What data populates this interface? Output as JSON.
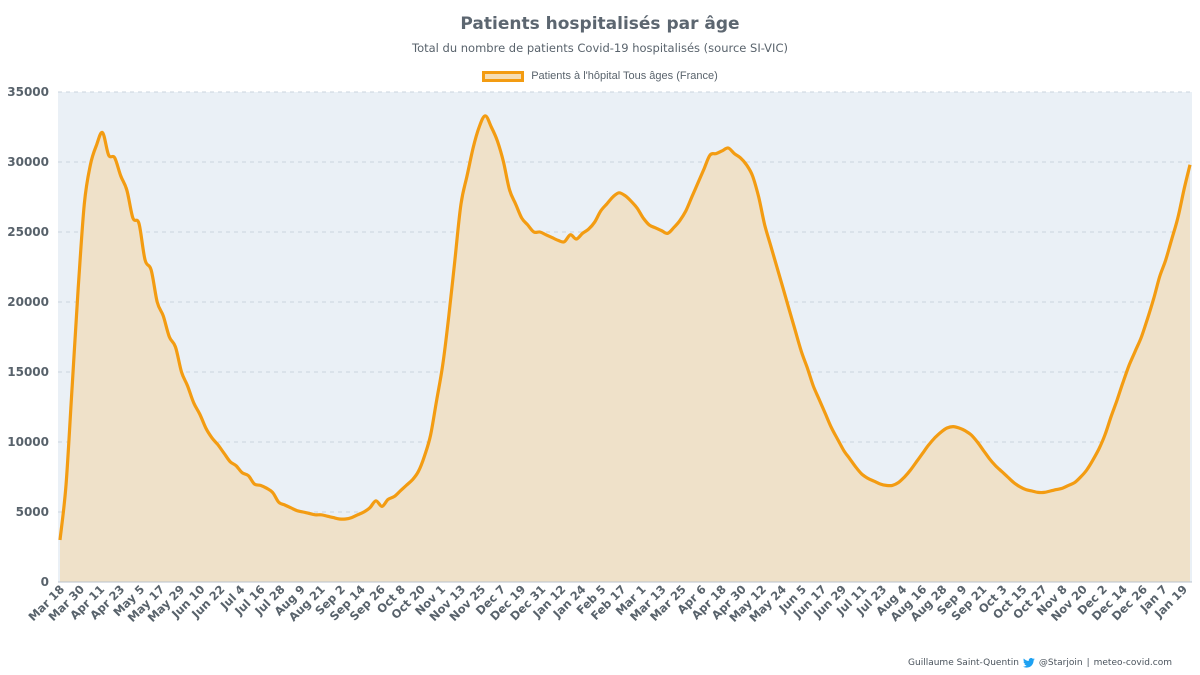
{
  "header": {
    "title": "Patients hospitalisés par âge",
    "subtitle": "Total du nombre de patients Covid-19 hospitalisés (source SI-VIC)"
  },
  "footer": {
    "author": "Guillaume Saint-Quentin",
    "handle": "@Starjoin",
    "separator": "|",
    "site": "meteo-covid.com"
  },
  "colors": {
    "line": "#f39c12",
    "fill": "#efe1c9",
    "plot_bg": "#eaf0f6",
    "grid": "#c9d3dd"
  },
  "chart_data": {
    "type": "area",
    "title": "Patients hospitalisés par âge",
    "subtitle": "Total du nombre de patients Covid-19 hospitalisés (source SI-VIC)",
    "xlabel": "",
    "ylabel": "",
    "ylim": [
      0,
      35000
    ],
    "yticks": [
      "0",
      "5000",
      "10000",
      "15000",
      "20000",
      "25000",
      "30000",
      "35000"
    ],
    "grid": true,
    "legend_position": "top",
    "x_tick_labels": [
      "Mar 18",
      "Mar 30",
      "Apr 11",
      "Apr 23",
      "May 5",
      "May 17",
      "May 29",
      "Jun 10",
      "Jun 22",
      "Jul 4",
      "Jul 16",
      "Jul 28",
      "Aug 9",
      "Aug 21",
      "Sep 2",
      "Sep 14",
      "Sep 26",
      "Oct 8",
      "Oct 20",
      "Nov 1",
      "Nov 13",
      "Nov 25",
      "Dec 7",
      "Dec 19",
      "Dec 31",
      "Jan 12",
      "Jan 24",
      "Feb 5",
      "Feb 17",
      "Mar 1",
      "Mar 13",
      "Mar 25",
      "Apr 6",
      "Apr 18",
      "Apr 30",
      "May 12",
      "May 24",
      "Jun 5",
      "Jun 17",
      "Jun 29",
      "Jul 11",
      "Jul 23",
      "Aug 4",
      "Aug 16",
      "Aug 28",
      "Sep 9",
      "Sep 21",
      "Oct 3",
      "Oct 15",
      "Oct 27",
      "Nov 8",
      "Nov 20",
      "Dec 2",
      "Dec 14",
      "Dec 26",
      "Jan 7",
      "Jan 19"
    ],
    "series": [
      {
        "name": "Patients à l'hôpital Tous âges (France)",
        "values": [
          3000,
          7000,
          14000,
          21000,
          27000,
          29800,
          31200,
          32100,
          30500,
          30300,
          29000,
          28000,
          26000,
          25600,
          23000,
          22300,
          20000,
          19000,
          17500,
          16800,
          15000,
          14000,
          12800,
          12000,
          11000,
          10300,
          9800,
          9200,
          8600,
          8300,
          7800,
          7600,
          7000,
          6900,
          6700,
          6400,
          5700,
          5500,
          5300,
          5100,
          5000,
          4900,
          4800,
          4800,
          4700,
          4600,
          4500,
          4500,
          4600,
          4800,
          5000,
          5300,
          5800,
          5400,
          5900,
          6100,
          6500,
          6900,
          7300,
          7900,
          9000,
          10500,
          13000,
          15500,
          19000,
          23000,
          27000,
          29000,
          31000,
          32500,
          33300,
          32500,
          31500,
          30000,
          28000,
          27000,
          26000,
          25500,
          25000,
          25000,
          24800,
          24600,
          24400,
          24300,
          24800,
          24500,
          24900,
          25200,
          25700,
          26500,
          27000,
          27500,
          27800,
          27600,
          27200,
          26700,
          26000,
          25500,
          25300,
          25100,
          24900,
          25300,
          25800,
          26500,
          27500,
          28500,
          29500,
          30500,
          30600,
          30800,
          31000,
          30600,
          30300,
          29800,
          29000,
          27500,
          25500,
          24000,
          22500,
          21000,
          19500,
          18000,
          16500,
          15300,
          14000,
          13000,
          12000,
          11000,
          10200,
          9400,
          8800,
          8200,
          7700,
          7400,
          7200,
          7000,
          6900,
          6900,
          7100,
          7500,
          8000,
          8600,
          9200,
          9800,
          10300,
          10700,
          11000,
          11100,
          11000,
          10800,
          10500,
          10000,
          9400,
          8800,
          8300,
          7900,
          7500,
          7100,
          6800,
          6600,
          6500,
          6400,
          6400,
          6500,
          6600,
          6700,
          6900,
          7100,
          7500,
          8000,
          8700,
          9500,
          10500,
          11800,
          13000,
          14300,
          15500,
          16500,
          17500,
          18800,
          20200,
          21800,
          23000,
          24500,
          26000,
          28000,
          29800
        ]
      }
    ]
  }
}
